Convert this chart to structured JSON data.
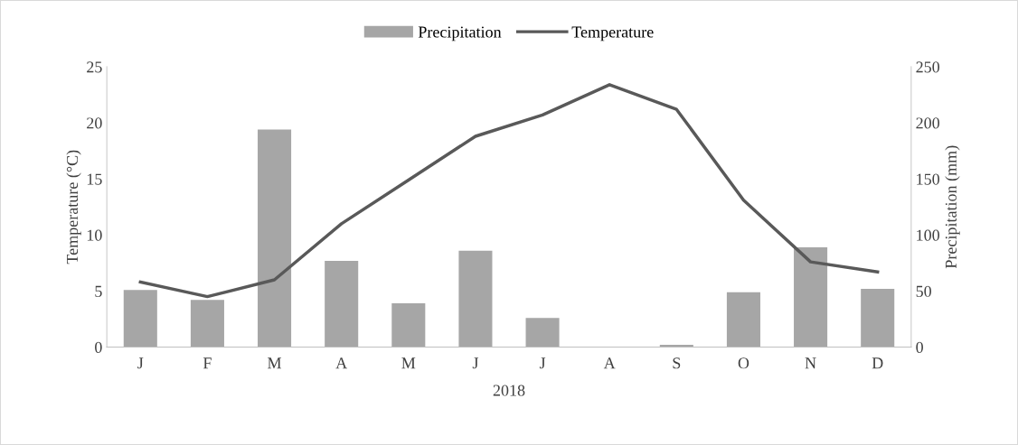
{
  "chart_data": {
    "type": "bar",
    "xlabel": "2018",
    "ylabel": "Temperature (°C)",
    "y2label": "Precipitation (mm)",
    "categories": [
      "J",
      "F",
      "M",
      "A",
      "M",
      "J",
      "J",
      "A",
      "S",
      "O",
      "N",
      "D"
    ],
    "series": [
      {
        "name": "Precipitation",
        "axis": "y2",
        "color": "#a6a6a6",
        "values": [
          51,
          42,
          194,
          77,
          39,
          86,
          26,
          0,
          2,
          49,
          89,
          52
        ]
      },
      {
        "name": "Temperature",
        "type": "line",
        "axis": "y",
        "color": "#595959",
        "values": [
          5.8,
          4.5,
          6.0,
          11.0,
          14.9,
          18.8,
          20.7,
          23.4,
          21.2,
          13.1,
          7.6,
          6.7
        ]
      }
    ],
    "ylim": [
      0,
      25
    ],
    "yticks": [
      0,
      5,
      10,
      15,
      20,
      25
    ],
    "y2lim": [
      0,
      250
    ],
    "y2ticks": [
      0,
      50,
      100,
      150,
      200,
      250
    ],
    "grid": false,
    "legend": "top",
    "marker": "none",
    "line_style": "solid"
  }
}
